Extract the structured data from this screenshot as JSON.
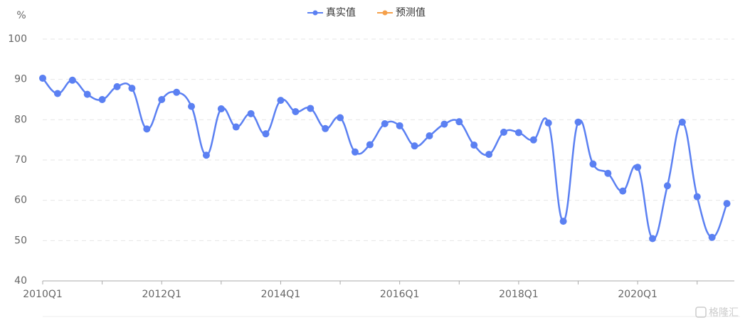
{
  "chart_data": {
    "type": "line",
    "y_unit": "%",
    "categories": [
      "2010Q1",
      null,
      null,
      null,
      null,
      null,
      null,
      null,
      "2012Q1",
      null,
      null,
      null,
      null,
      null,
      null,
      null,
      "2014Q1",
      null,
      null,
      null,
      null,
      null,
      null,
      null,
      "2016Q1",
      null,
      null,
      null,
      null,
      null,
      null,
      null,
      "2018Q1",
      null,
      null,
      null,
      null,
      null,
      null,
      null,
      "2020Q1",
      null,
      null,
      null,
      null,
      null,
      null
    ],
    "series": [
      {
        "name": "真实值",
        "color": "#5b80f2",
        "values": [
          90.3,
          86.5,
          89.8,
          86.3,
          85,
          88.2,
          87.8,
          77.7,
          85,
          86.8,
          83.3,
          71.2,
          82.7,
          78.2,
          81.5,
          76.5,
          84.8,
          82,
          82.8,
          77.8,
          80.5,
          72,
          73.8,
          79,
          78.5,
          73.5,
          76,
          78.9,
          79.5,
          73.7,
          71.4,
          76.9,
          76.8,
          75,
          79.2,
          54.8,
          79.4,
          69,
          66.7,
          62.3,
          68.2,
          50.5,
          63.6,
          79.4,
          60.9,
          50.8,
          59.2
        ]
      },
      {
        "name": "预测值",
        "color": "#f5a04a",
        "values": [
          null,
          null,
          null,
          null,
          null,
          null,
          null,
          null,
          null,
          null,
          null,
          null,
          null,
          null,
          null,
          null,
          null,
          null,
          null,
          null,
          null,
          null,
          null,
          null,
          null,
          null,
          null,
          null,
          null,
          null,
          null,
          null,
          null,
          null,
          null,
          null,
          null,
          null,
          null,
          null,
          null,
          null,
          null,
          null,
          null,
          null,
          null
        ]
      }
    ],
    "ylim": [
      40,
      100
    ],
    "yticks": [
      40,
      50,
      60,
      70,
      80,
      90,
      100
    ],
    "grid": true,
    "legend": "top",
    "watermark": "格隆汇"
  }
}
